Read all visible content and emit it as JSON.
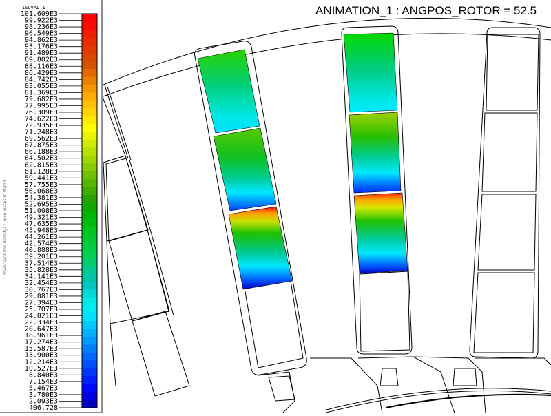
{
  "window": {
    "title": "ANIMATION_1 : ANGPOS_ROTOR = 52.5"
  },
  "legend": {
    "isoval_title": "ISOVAL_1",
    "quantity_caption": "Power (volume density) / Joule losses in W/m3",
    "labels": [
      "101.609E3",
      "99.922E3",
      "98.236E3",
      "96.549E3",
      "94.862E3",
      "93.176E3",
      "91.489E3",
      "89.802E3",
      "88.116E3",
      "86.429E3",
      "84.742E3",
      "83.055E3",
      "81.369E3",
      "79.682E3",
      "77.995E3",
      "76.309E3",
      "74.622E3",
      "72.935E3",
      "71.248E3",
      "69.562E3",
      "67.875E3",
      "66.188E3",
      "64.502E3",
      "62.815E3",
      "61.128E3",
      "59.441E3",
      "57.755E3",
      "56.068E3",
      "54.381E3",
      "52.695E3",
      "51.008E3",
      "49.321E3",
      "47.635E3",
      "45.948E3",
      "44.261E3",
      "42.574E3",
      "40.888E3",
      "39.201E3",
      "37.514E3",
      "35.828E3",
      "34.141E3",
      "32.454E3",
      "30.767E3",
      "29.081E3",
      "27.394E3",
      "25.707E3",
      "24.021E3",
      "22.334E3",
      "20.647E3",
      "18.961E3",
      "17.274E3",
      "15.587E3",
      "13.900E3",
      "12.214E3",
      "10.527E3",
      "8.840E3",
      "7.154E3",
      "5.467E3",
      "3.780E3",
      "2.093E3",
      "406.728"
    ],
    "colors": [
      "#ff0000",
      "#f80e00",
      "#f01c00",
      "#e92a00",
      "#e23800",
      "#db4600",
      "#d45400",
      "#e06a00",
      "#ea8000",
      "#f49600",
      "#ffac00",
      "#ffc000",
      "#ffd400",
      "#ffea00",
      "#ffff00",
      "#e8f400",
      "#d0ea00",
      "#b8e000",
      "#a0d500",
      "#88cb00",
      "#6fc000",
      "#57b600",
      "#3fac00",
      "#28a200",
      "#10a800",
      "#00b400",
      "#00bc10",
      "#00c420",
      "#00c830",
      "#00cc40",
      "#00d050",
      "#00cc70",
      "#00c890",
      "#00c4a8",
      "#00c8c0",
      "#00d8d8",
      "#00e8e8",
      "#00ecf4",
      "#00e0ff",
      "#00c8ff",
      "#00b0ff",
      "#0098ff",
      "#0080ff",
      "#0068ff",
      "#0050ff",
      "#0038ff",
      "#0020ff",
      "#0008ff",
      "#0000e0",
      "#0000c0"
    ]
  },
  "model": {
    "description_free": true
  }
}
